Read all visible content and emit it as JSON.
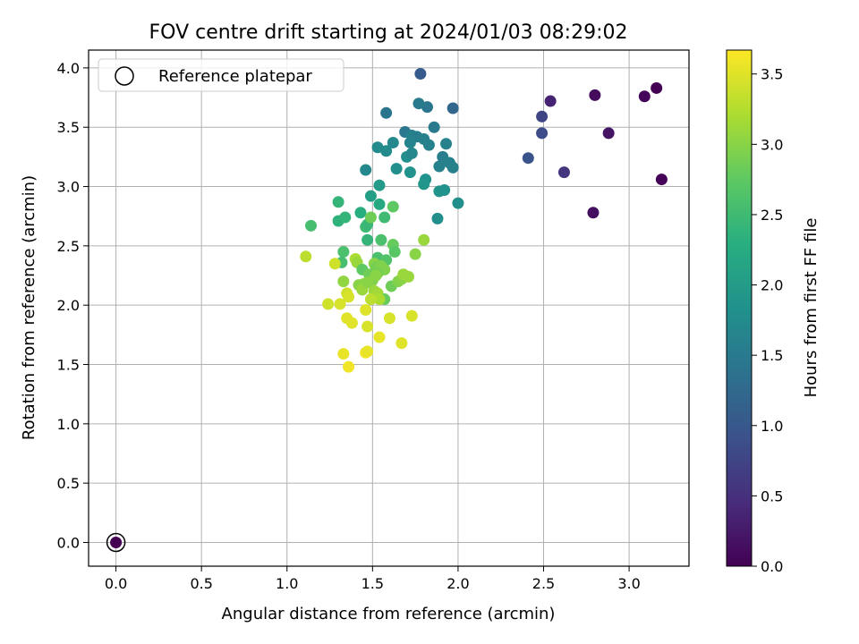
{
  "chart_data": {
    "type": "scatter",
    "title": "FOV centre drift starting at 2024/01/03 08:29:02",
    "xlabel": "Angular distance from reference (arcmin)",
    "ylabel": "Rotation from reference (arcmin)",
    "xlim": [
      -0.16,
      3.35
    ],
    "ylim": [
      -0.2,
      4.15
    ],
    "xticks": [
      "0.0",
      "0.5",
      "1.0",
      "1.5",
      "2.0",
      "2.5",
      "3.0"
    ],
    "yticks": [
      "0.0",
      "0.5",
      "1.0",
      "1.5",
      "2.0",
      "2.5",
      "3.0",
      "3.5",
      "4.0"
    ],
    "grid": true,
    "legend": {
      "position": "top-left",
      "entries": [
        "Reference platepar"
      ]
    },
    "colorbar": {
      "label": "Hours from first FF file",
      "range": [
        0.0,
        3.67
      ],
      "ticks": [
        "0.0",
        "0.5",
        "1.0",
        "1.5",
        "2.0",
        "2.5",
        "3.0",
        "3.5"
      ],
      "colormap": "viridis"
    },
    "reference_point": {
      "x": 0.0,
      "y": 0.0
    },
    "series": [
      {
        "points": [
          [
            0.0,
            0.0,
            0.0
          ],
          [
            3.16,
            3.83,
            0.0
          ],
          [
            3.19,
            3.06,
            0.02
          ],
          [
            3.09,
            3.76,
            0.05
          ],
          [
            2.8,
            3.77,
            0.1
          ],
          [
            2.79,
            2.78,
            0.15
          ],
          [
            2.88,
            3.45,
            0.2
          ],
          [
            2.54,
            3.72,
            0.35
          ],
          [
            2.62,
            3.12,
            0.55
          ],
          [
            2.49,
            3.59,
            0.75
          ],
          [
            2.49,
            3.45,
            0.85
          ],
          [
            2.41,
            3.24,
            0.95
          ],
          [
            1.78,
            3.95,
            1.05
          ],
          [
            1.97,
            3.66,
            1.2
          ],
          [
            1.58,
            3.62,
            1.4
          ],
          [
            1.82,
            3.67,
            1.45
          ],
          [
            1.77,
            3.7,
            1.5
          ],
          [
            1.69,
            3.46,
            1.45
          ],
          [
            1.86,
            3.5,
            1.5
          ],
          [
            1.73,
            3.43,
            1.6
          ],
          [
            1.76,
            3.42,
            1.55
          ],
          [
            1.8,
            3.4,
            1.6
          ],
          [
            1.72,
            3.37,
            1.65
          ],
          [
            1.83,
            3.35,
            1.6
          ],
          [
            1.93,
            3.36,
            1.6
          ],
          [
            1.62,
            3.37,
            1.7
          ],
          [
            1.53,
            3.33,
            1.75
          ],
          [
            1.58,
            3.3,
            1.75
          ],
          [
            1.7,
            3.25,
            1.8
          ],
          [
            1.73,
            3.28,
            1.7
          ],
          [
            1.91,
            3.25,
            1.55
          ],
          [
            1.95,
            3.2,
            1.6
          ],
          [
            1.89,
            3.17,
            1.6
          ],
          [
            1.97,
            3.16,
            1.6
          ],
          [
            1.64,
            3.15,
            1.8
          ],
          [
            1.72,
            3.12,
            1.85
          ],
          [
            1.46,
            3.14,
            1.7
          ],
          [
            1.81,
            3.06,
            1.85
          ],
          [
            1.8,
            3.02,
            1.9
          ],
          [
            1.89,
            2.96,
            1.9
          ],
          [
            1.92,
            2.97,
            1.85
          ],
          [
            1.54,
            3.01,
            2.0
          ],
          [
            1.49,
            2.92,
            2.05
          ],
          [
            1.88,
            2.73,
            1.8
          ],
          [
            2.0,
            2.86,
            1.8
          ],
          [
            1.54,
            2.85,
            2.2
          ],
          [
            1.3,
            2.87,
            2.4
          ],
          [
            1.3,
            2.71,
            2.35
          ],
          [
            1.34,
            2.74,
            2.4
          ],
          [
            1.43,
            2.78,
            2.3
          ],
          [
            1.57,
            2.74,
            2.5
          ],
          [
            1.14,
            2.67,
            2.55
          ],
          [
            1.46,
            2.66,
            2.5
          ],
          [
            1.47,
            2.68,
            2.45
          ],
          [
            1.62,
            2.83,
            2.75
          ],
          [
            1.49,
            2.74,
            2.85
          ],
          [
            1.47,
            2.55,
            2.4
          ],
          [
            1.55,
            2.55,
            2.6
          ],
          [
            1.33,
            2.45,
            2.6
          ],
          [
            1.62,
            2.51,
            2.8
          ],
          [
            1.63,
            2.45,
            2.7
          ],
          [
            1.32,
            2.36,
            2.55
          ],
          [
            1.53,
            2.4,
            2.6
          ],
          [
            1.58,
            2.38,
            2.65
          ],
          [
            1.8,
            2.55,
            3.1
          ],
          [
            1.75,
            2.43,
            3.0
          ],
          [
            1.11,
            2.41,
            3.3
          ],
          [
            1.28,
            2.35,
            3.4
          ],
          [
            1.4,
            2.39,
            3.2
          ],
          [
            1.41,
            2.36,
            3.1
          ],
          [
            1.44,
            2.3,
            2.75
          ],
          [
            1.51,
            2.35,
            3.0
          ],
          [
            1.52,
            2.32,
            2.9
          ],
          [
            1.55,
            2.33,
            2.95
          ],
          [
            1.57,
            2.3,
            2.95
          ],
          [
            1.53,
            2.27,
            2.9
          ],
          [
            1.48,
            2.26,
            2.85
          ],
          [
            1.5,
            2.21,
            2.95
          ],
          [
            1.52,
            2.25,
            3.0
          ],
          [
            1.45,
            2.18,
            3.1
          ],
          [
            1.42,
            2.17,
            3.0
          ],
          [
            1.44,
            2.13,
            3.1
          ],
          [
            1.47,
            2.19,
            3.0
          ],
          [
            1.61,
            2.16,
            2.85
          ],
          [
            1.65,
            2.2,
            2.95
          ],
          [
            1.67,
            2.22,
            3.0
          ],
          [
            1.68,
            2.26,
            3.1
          ],
          [
            1.71,
            2.24,
            3.1
          ],
          [
            1.33,
            2.2,
            3.05
          ],
          [
            1.51,
            2.12,
            3.1
          ],
          [
            1.53,
            2.1,
            3.15
          ],
          [
            1.57,
            2.05,
            2.8
          ],
          [
            1.54,
            2.05,
            3.2
          ],
          [
            1.49,
            2.05,
            3.3
          ],
          [
            1.35,
            2.1,
            3.4
          ],
          [
            1.36,
            2.07,
            3.45
          ],
          [
            1.31,
            2.01,
            3.45
          ],
          [
            1.24,
            2.01,
            3.4
          ],
          [
            1.46,
            1.96,
            3.5
          ],
          [
            1.6,
            1.89,
            3.45
          ],
          [
            1.35,
            1.89,
            3.5
          ],
          [
            1.38,
            1.85,
            3.5
          ],
          [
            1.47,
            1.82,
            3.45
          ],
          [
            1.73,
            1.91,
            3.45
          ],
          [
            1.54,
            1.73,
            3.55
          ],
          [
            1.67,
            1.68,
            3.5
          ],
          [
            1.33,
            1.59,
            3.55
          ],
          [
            1.46,
            1.6,
            3.6
          ],
          [
            1.47,
            1.61,
            3.55
          ],
          [
            1.36,
            1.48,
            3.6
          ]
        ]
      }
    ]
  }
}
